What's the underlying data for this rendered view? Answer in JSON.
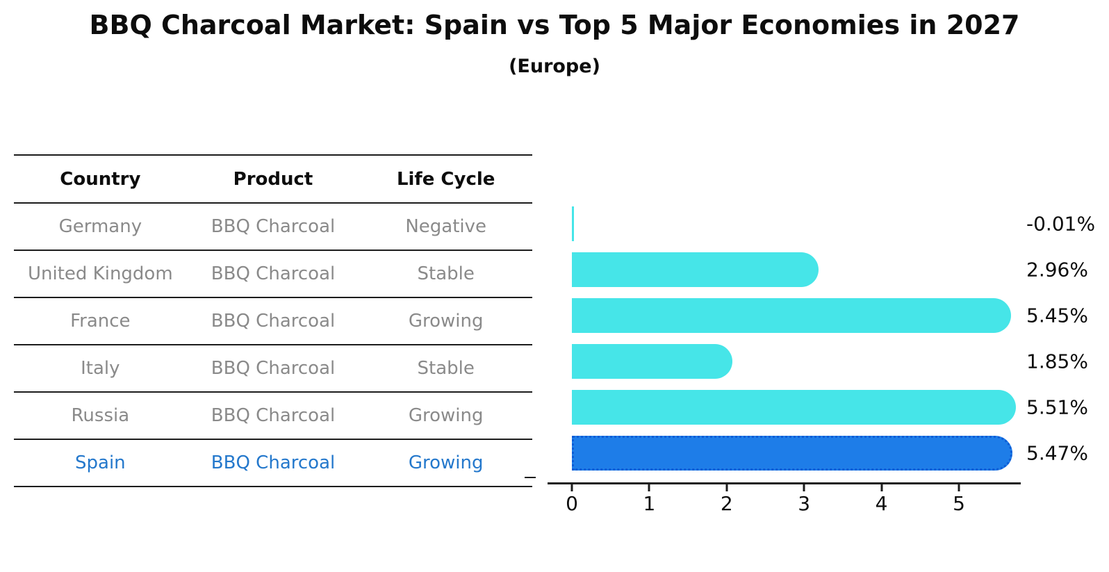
{
  "title": "BBQ Charcoal Market: Spain vs Top 5 Major Economies in 2027",
  "subtitle": "(Europe)",
  "table": {
    "headers": [
      "Country",
      "Product",
      "Life Cycle"
    ],
    "rows": [
      {
        "country": "Germany",
        "product": "BBQ Charcoal",
        "life_cycle": "Negative",
        "highlight": false
      },
      {
        "country": "United Kingdom",
        "product": "BBQ Charcoal",
        "life_cycle": "Stable",
        "highlight": false
      },
      {
        "country": "France",
        "product": "BBQ Charcoal",
        "life_cycle": "Growing",
        "highlight": false
      },
      {
        "country": "Italy",
        "product": "BBQ Charcoal",
        "life_cycle": "Stable",
        "highlight": false
      },
      {
        "country": "Russia",
        "product": "BBQ Charcoal",
        "life_cycle": "Growing",
        "highlight": false
      },
      {
        "country": "Spain",
        "product": "BBQ Charcoal",
        "life_cycle": "Growing",
        "highlight": true
      }
    ]
  },
  "chart_data": {
    "type": "bar",
    "orientation": "horizontal",
    "title": "BBQ Charcoal Market: Spain vs Top 5 Major Economies in 2027",
    "subtitle": "(Europe)",
    "categories": [
      "Germany",
      "United Kingdom",
      "France",
      "Italy",
      "Russia",
      "Spain"
    ],
    "values": [
      -0.01,
      2.96,
      5.45,
      1.85,
      5.51,
      5.47
    ],
    "value_labels": [
      "-0.01%",
      "2.96%",
      "5.45%",
      "1.85%",
      "5.51%",
      "5.47%"
    ],
    "x_ticks": [
      "0",
      "1",
      "2",
      "3",
      "4",
      "5"
    ],
    "xlim": [
      0,
      5.79
    ],
    "xlabel": "",
    "ylabel": "",
    "grid": false,
    "legend": false,
    "highlight_index": 5,
    "bar_color": "#46e5e8",
    "highlight_bar_color": "#1e7de8",
    "highlight_border_color": "#0c5cd6"
  },
  "colors": {
    "text": "#0d0d0d",
    "muted_text": "#8a8a8a",
    "highlight_text": "#2478cc",
    "line": "#1c1c1c",
    "background": "#ffffff"
  }
}
